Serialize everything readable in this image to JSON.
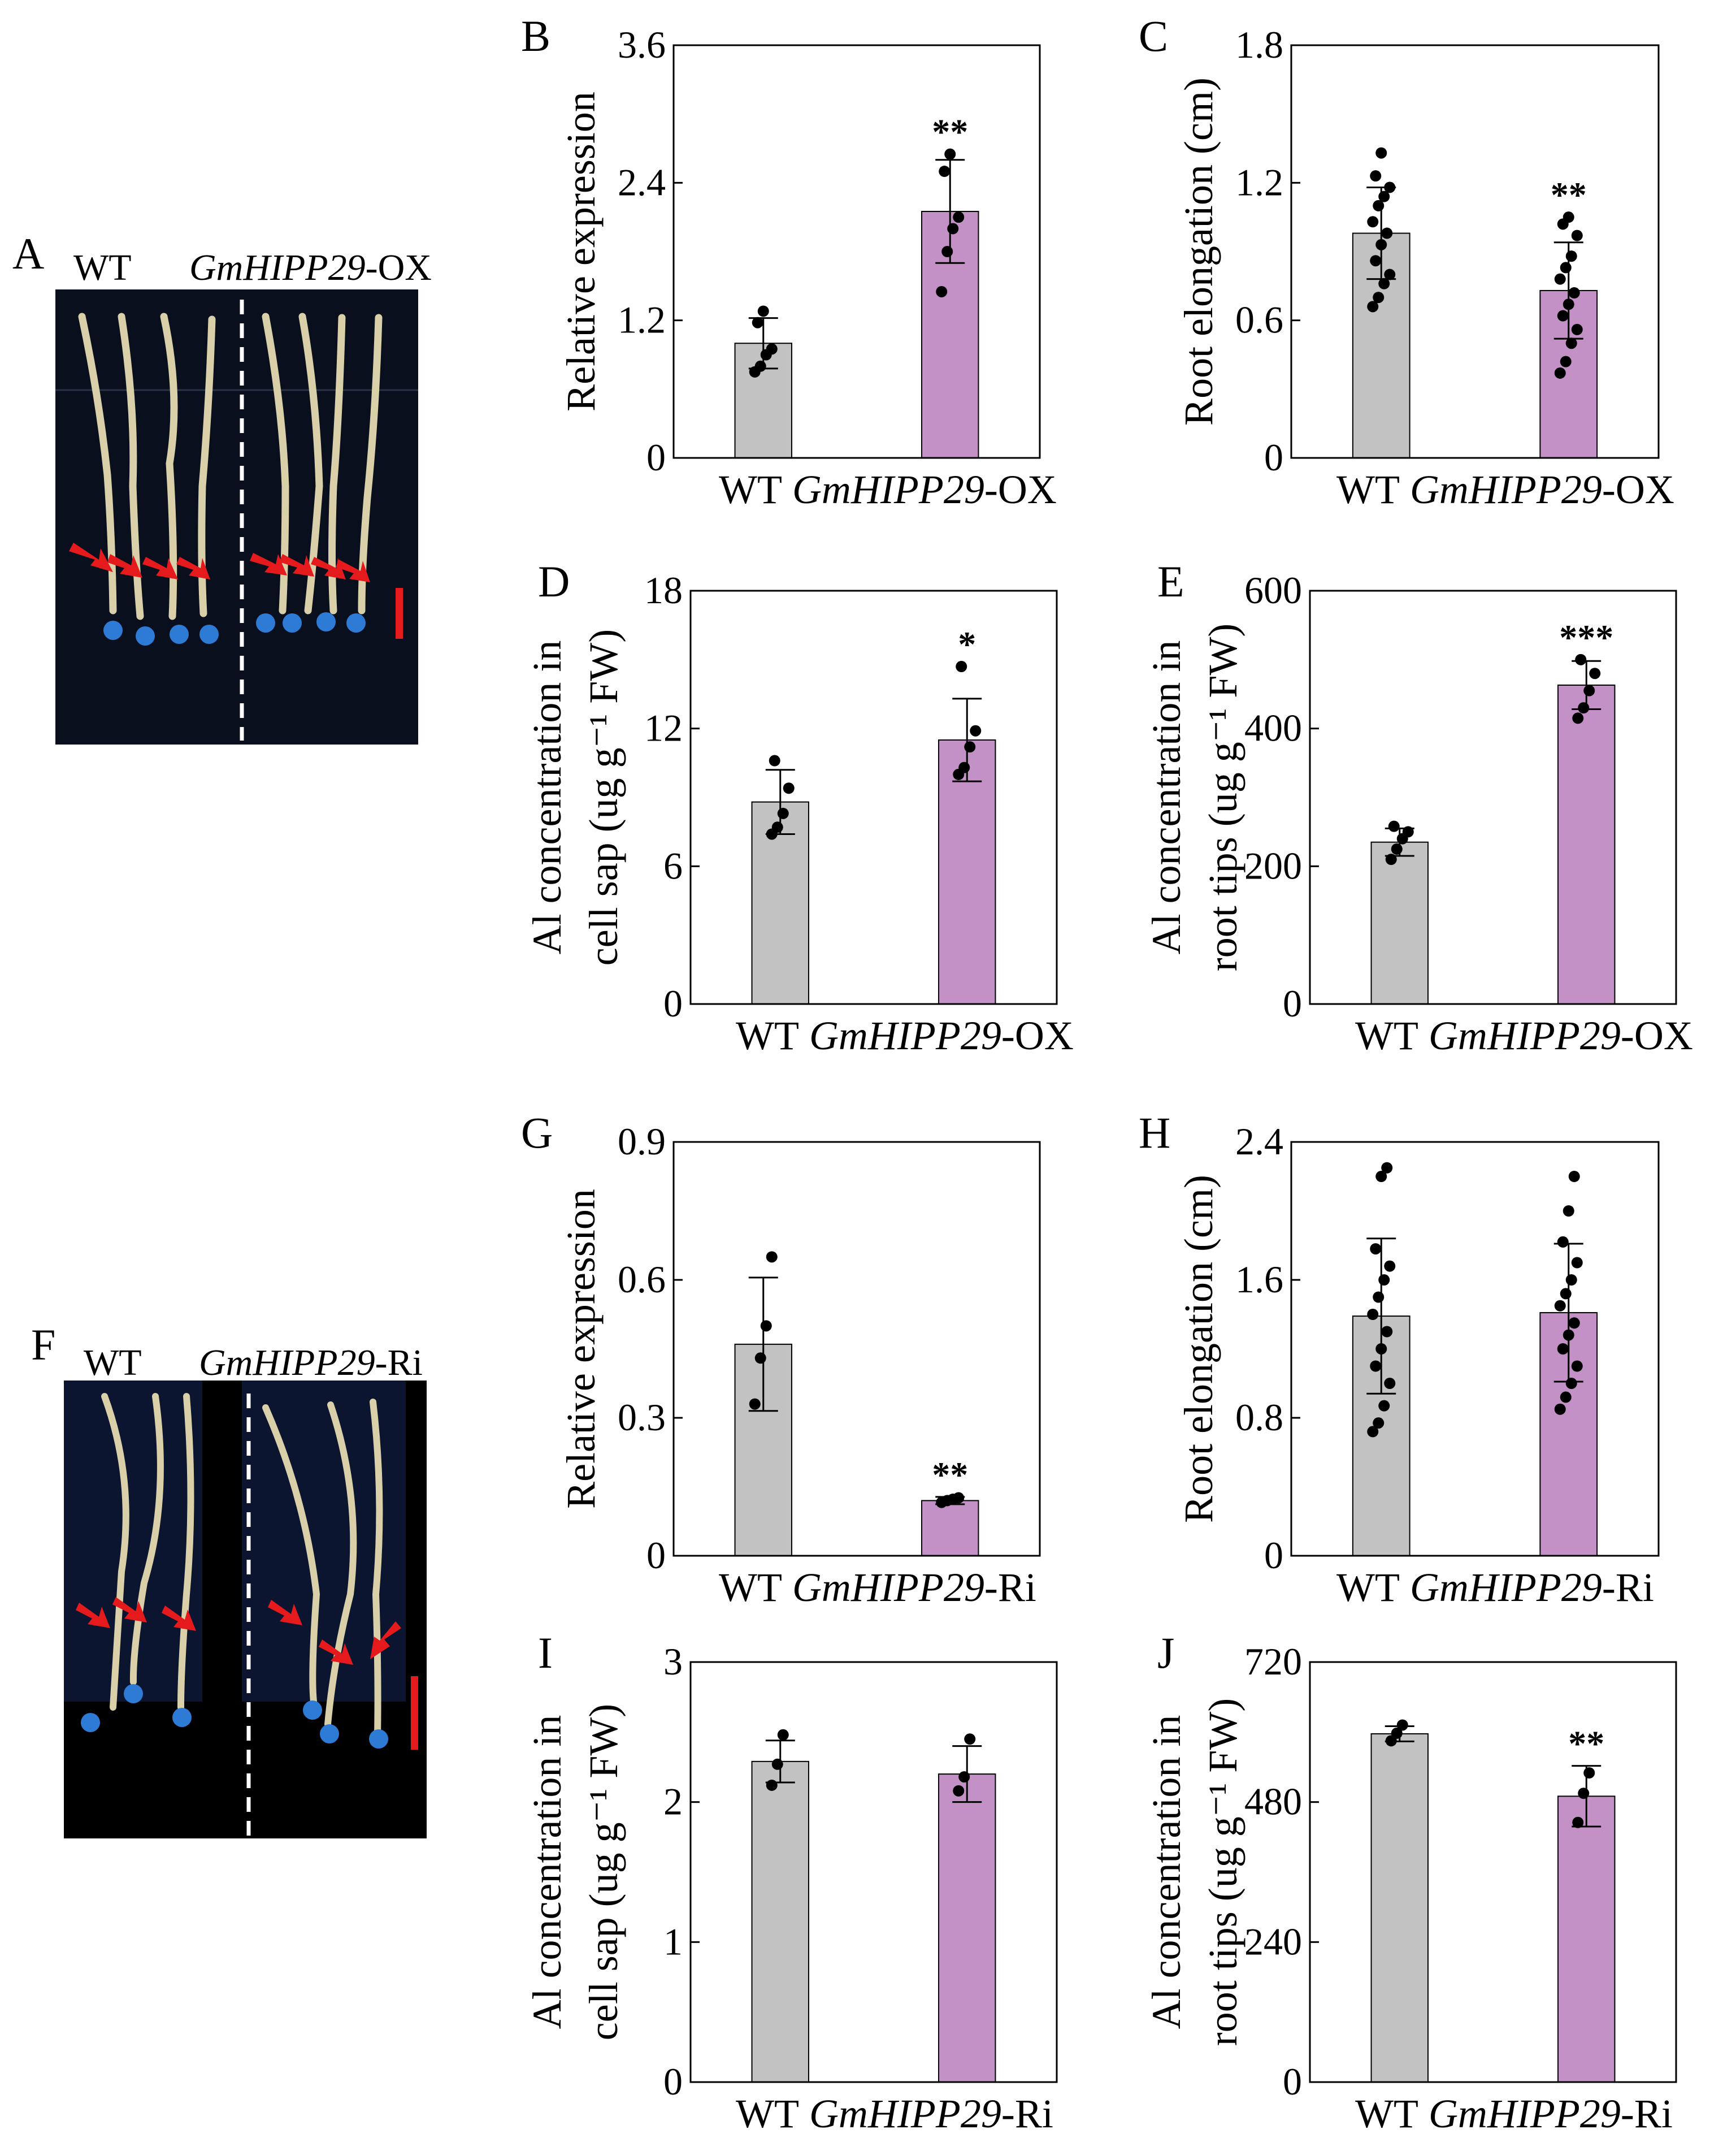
{
  "colors": {
    "wt_bar": "#C2C2C2",
    "transgenic_bar": "#C391C5",
    "arrow": "#E41A1C",
    "tip_dot": "#2E7BD6",
    "photo_bg": "#0A0F1E",
    "scale_bar": "#E41A1C"
  },
  "photos": [
    {
      "panel": "A",
      "label_wt": "WT",
      "label_gene": "GmHIPP29",
      "label_suffix": "-OX"
    },
    {
      "panel": "F",
      "label_wt": "WT",
      "label_gene": "GmHIPP29",
      "label_suffix": "-Ri"
    }
  ],
  "chart_data": [
    {
      "panel": "B",
      "type": "bar",
      "ylabel_lines": [
        "Relative expression"
      ],
      "categories": [
        "WT",
        "GmHIPP29-OX"
      ],
      "cat_wt": "WT",
      "cat_gene": "GmHIPP29",
      "cat_suffix": "-OX",
      "ylim": [
        0,
        3.6
      ],
      "yticks": [
        "0",
        "1.2",
        "2.4",
        "3.6"
      ],
      "ytick_values": [
        0,
        1.2,
        2.4,
        3.6
      ],
      "means": [
        1.0,
        2.15
      ],
      "sd": [
        0.22,
        0.45
      ],
      "significance": [
        "",
        "**"
      ],
      "points": [
        [
          0.75,
          0.8,
          0.9,
          0.95,
          1.18,
          1.28
        ],
        [
          1.45,
          1.8,
          2.0,
          2.1,
          2.5,
          2.65
        ]
      ]
    },
    {
      "panel": "C",
      "type": "bar",
      "ylabel_lines": [
        "Root elongation (cm)"
      ],
      "categories": [
        "WT",
        "GmHIPP29-OX"
      ],
      "cat_wt": "WT",
      "cat_gene": "GmHIPP29",
      "cat_suffix": "-OX",
      "ylim": [
        0,
        1.8
      ],
      "yticks": [
        "0",
        "0.6",
        "1.2",
        "1.8"
      ],
      "ytick_values": [
        0,
        0.6,
        1.2,
        1.8
      ],
      "means": [
        0.98,
        0.73
      ],
      "sd": [
        0.2,
        0.21
      ],
      "significance": [
        "",
        "**"
      ],
      "points": [
        [
          0.66,
          0.7,
          0.76,
          0.8,
          0.86,
          0.93,
          0.98,
          1.03,
          1.1,
          1.14,
          1.18,
          1.23,
          1.33
        ],
        [
          0.37,
          0.42,
          0.5,
          0.56,
          0.62,
          0.67,
          0.72,
          0.78,
          0.83,
          0.88,
          0.97,
          1.02,
          1.05
        ]
      ]
    },
    {
      "panel": "D",
      "type": "bar",
      "ylabel_lines": [
        "Al concentration in",
        "cell sap (ug g⁻¹ FW)"
      ],
      "categories": [
        "WT",
        "GmHIPP29-OX"
      ],
      "cat_wt": "WT",
      "cat_gene": "GmHIPP29",
      "cat_suffix": "-OX",
      "ylim": [
        0,
        18
      ],
      "yticks": [
        "0",
        "6",
        "12",
        "18"
      ],
      "ytick_values": [
        0,
        6,
        12,
        18
      ],
      "means": [
        8.8,
        11.5
      ],
      "sd": [
        1.4,
        1.8
      ],
      "significance": [
        "",
        "*"
      ],
      "points": [
        [
          7.4,
          7.7,
          8.3,
          9.4,
          10.6
        ],
        [
          10.0,
          10.3,
          11.2,
          11.9,
          14.7
        ]
      ]
    },
    {
      "panel": "E",
      "type": "bar",
      "ylabel_lines": [
        "Al concentration in",
        "root tips (ug g⁻¹ FW)"
      ],
      "categories": [
        "WT",
        "GmHIPP29-OX"
      ],
      "cat_wt": "WT",
      "cat_gene": "GmHIPP29",
      "cat_suffix": "-OX",
      "ylim": [
        0,
        600
      ],
      "yticks": [
        "0",
        "200",
        "400",
        "600"
      ],
      "ytick_values": [
        0,
        200,
        400,
        600
      ],
      "means": [
        235,
        463
      ],
      "sd": [
        20,
        35
      ],
      "significance": [
        "",
        "***"
      ],
      "points": [
        [
          210,
          225,
          240,
          250,
          258
        ],
        [
          415,
          430,
          455,
          480,
          500
        ]
      ]
    },
    {
      "panel": "G",
      "type": "bar",
      "ylabel_lines": [
        "Relative expression"
      ],
      "categories": [
        "WT",
        "GmHIPP29-Ri"
      ],
      "cat_wt": "WT",
      "cat_gene": "GmHIPP29",
      "cat_suffix": "-Ri",
      "ylim": [
        0,
        0.9
      ],
      "yticks": [
        "0",
        "0.3",
        "0.6",
        "0.9"
      ],
      "ytick_values": [
        0,
        0.3,
        0.6,
        0.9
      ],
      "means": [
        0.46,
        0.12
      ],
      "sd": [
        0.145,
        0.008
      ],
      "significance": [
        "",
        "**"
      ],
      "points": [
        [
          0.33,
          0.43,
          0.5,
          0.65
        ],
        [
          0.116,
          0.12,
          0.123,
          0.126
        ]
      ]
    },
    {
      "panel": "H",
      "type": "bar",
      "ylabel_lines": [
        "Root elongation (cm)"
      ],
      "categories": [
        "WT",
        "GmHIPP29-Ri"
      ],
      "cat_wt": "WT",
      "cat_gene": "GmHIPP29",
      "cat_suffix": "-Ri",
      "ylim": [
        0,
        2.4
      ],
      "yticks": [
        "0",
        "0.8",
        "1.6",
        "2.4"
      ],
      "ytick_values": [
        0,
        0.8,
        1.6,
        2.4
      ],
      "means": [
        1.39,
        1.41
      ],
      "sd": [
        0.45,
        0.4
      ],
      "significance": [
        "",
        ""
      ],
      "points": [
        [
          0.72,
          0.77,
          0.87,
          1.0,
          1.1,
          1.2,
          1.3,
          1.4,
          1.5,
          1.6,
          1.68,
          1.78,
          2.2,
          2.25
        ],
        [
          0.85,
          0.92,
          1.0,
          1.1,
          1.2,
          1.28,
          1.35,
          1.45,
          1.52,
          1.6,
          1.7,
          1.82,
          2.0,
          2.2
        ]
      ]
    },
    {
      "panel": "I",
      "type": "bar",
      "ylabel_lines": [
        "Al concentration in",
        "cell sap (ug g⁻¹ FW)"
      ],
      "categories": [
        "WT",
        "GmHIPP29-Ri"
      ],
      "cat_wt": "WT",
      "cat_gene": "GmHIPP29",
      "cat_suffix": "-Ri",
      "ylim": [
        0,
        3
      ],
      "yticks": [
        "0",
        "1",
        "2",
        "3"
      ],
      "ytick_values": [
        0,
        1,
        2,
        3
      ],
      "means": [
        2.29,
        2.2
      ],
      "sd": [
        0.15,
        0.2
      ],
      "significance": [
        "",
        ""
      ],
      "points": [
        [
          2.12,
          2.27,
          2.48
        ],
        [
          2.08,
          2.18,
          2.45
        ]
      ]
    },
    {
      "panel": "J",
      "type": "bar",
      "ylabel_lines": [
        "Al concentration in",
        "root tips (ug g⁻¹ FW)"
      ],
      "categories": [
        "WT",
        "GmHIPP29-Ri"
      ],
      "cat_wt": "WT",
      "cat_gene": "GmHIPP29",
      "cat_suffix": "-Ri",
      "ylim": [
        0,
        720
      ],
      "yticks": [
        "0",
        "240",
        "480",
        "720"
      ],
      "ytick_values": [
        0,
        240,
        480,
        720
      ],
      "means": [
        597,
        490
      ],
      "sd": [
        13,
        52
      ],
      "significance": [
        "",
        "**"
      ],
      "points": [
        [
          585,
          598,
          612
        ],
        [
          445,
          495,
          530
        ]
      ]
    }
  ]
}
